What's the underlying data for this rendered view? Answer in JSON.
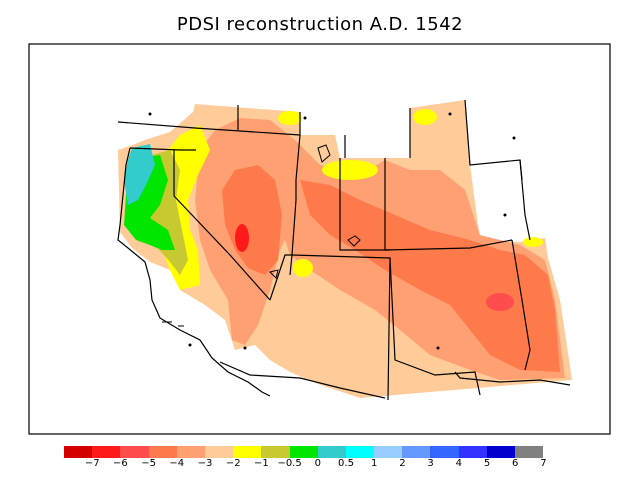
{
  "title": "PDSI reconstruction A.D. 1542",
  "legend": {
    "colors": [
      "#d70000",
      "#ff1a1a",
      "#ff4d4d",
      "#ff7a4a",
      "#ffa072",
      "#ffcc99",
      "#ffff00",
      "#c8c832",
      "#00e600",
      "#33cccc",
      "#00ffff",
      "#99ccff",
      "#6699ff",
      "#3366ff",
      "#3333ff",
      "#0000cc",
      "#808080"
    ],
    "labels": [
      "−7",
      "−6",
      "−5",
      "−4",
      "−3",
      "−2",
      "−1",
      "−0.5",
      "0",
      "0.5",
      "1",
      "2",
      "3",
      "4",
      "5",
      "6",
      "7"
    ]
  },
  "palette": {
    "outline": "#000000",
    "background": "#ffffff"
  }
}
